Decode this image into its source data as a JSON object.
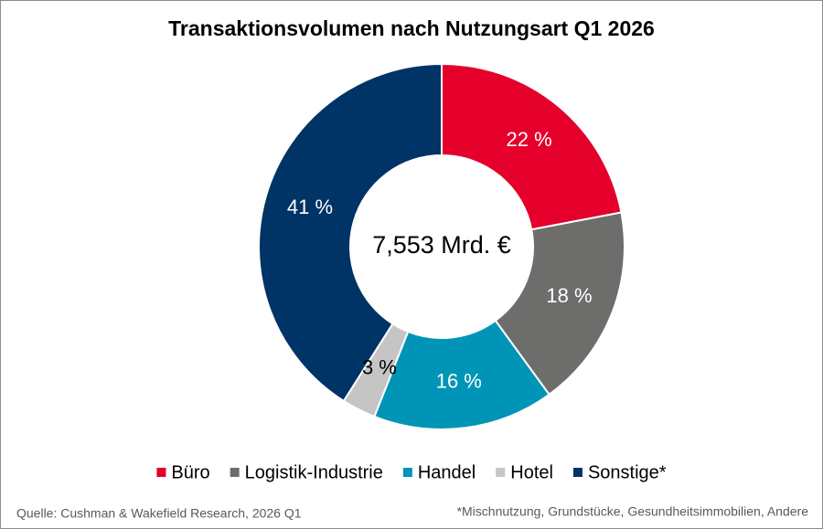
{
  "chart_data": {
    "type": "donut",
    "title": "Transaktionsvolumen nach Nutzungsart Q1 2026",
    "center_label": "7,553 Mrd. €",
    "categories": [
      "Büro",
      "Logistik-Industrie",
      "Handel",
      "Hotel",
      "Sonstige*"
    ],
    "values": [
      22,
      18,
      16,
      3,
      41
    ],
    "value_labels": [
      "22 %",
      "18 %",
      "16 %",
      "3 %",
      "41 %"
    ],
    "colors": [
      "#e4002b",
      "#6d6e6c",
      "#0095b6",
      "#c5c5c5",
      "#003366"
    ],
    "legend": "bottom",
    "source": "Quelle: Cushman & Wakefield Research, 2026 Q1",
    "note": "*Mischnutzung, Grundstücke, Gesundheitsimmobilien, Andere"
  }
}
